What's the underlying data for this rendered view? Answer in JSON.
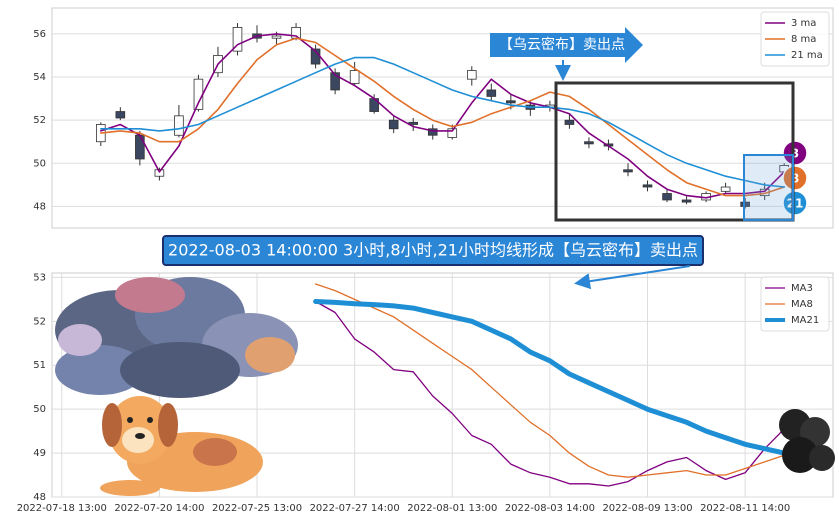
{
  "chart_data": [
    {
      "type": "candlestick",
      "annotation": "【乌云密布】卖出点",
      "open": [
        null,
        null,
        51.0,
        52.4,
        51.3,
        49.4,
        51.3,
        52.5,
        54.2,
        55.2,
        56.0,
        55.8,
        55.8,
        55.3,
        54.2,
        53.7,
        53.0,
        52.0,
        51.9,
        51.6,
        51.2,
        53.9,
        53.4,
        52.9,
        52.7,
        52.6,
        52.0,
        51.0,
        50.9,
        49.7,
        49.0,
        48.6,
        48.3,
        48.3,
        48.7,
        48.2,
        48.5,
        49.6,
        null,
        null
      ],
      "high": [
        null,
        null,
        51.9,
        52.6,
        51.5,
        49.8,
        52.7,
        54.1,
        55.4,
        56.5,
        56.4,
        56.1,
        56.5,
        55.5,
        54.4,
        54.7,
        53.2,
        52.2,
        52.1,
        51.8,
        51.8,
        54.5,
        53.7,
        53.2,
        52.9,
        52.9,
        52.3,
        51.2,
        51.1,
        50.0,
        49.2,
        48.8,
        48.5,
        48.7,
        49.1,
        48.4,
        49.1,
        50.0,
        null,
        null
      ],
      "low": [
        null,
        null,
        50.8,
        52.0,
        49.9,
        49.2,
        51.2,
        52.4,
        54.0,
        55.0,
        55.6,
        55.5,
        55.7,
        54.4,
        53.2,
        53.6,
        52.3,
        51.4,
        51.5,
        51.1,
        51.1,
        53.6,
        52.9,
        52.5,
        52.2,
        52.4,
        51.6,
        50.7,
        50.6,
        49.4,
        48.7,
        48.2,
        48.1,
        48.2,
        48.6,
        47.9,
        48.3,
        49.5,
        null,
        null
      ],
      "close": [
        null,
        null,
        51.8,
        52.1,
        50.2,
        49.7,
        52.2,
        53.9,
        55.0,
        56.3,
        55.8,
        55.9,
        56.3,
        54.6,
        53.4,
        54.3,
        52.4,
        51.6,
        51.8,
        51.3,
        51.6,
        54.3,
        53.1,
        52.8,
        52.5,
        52.7,
        51.8,
        50.9,
        50.8,
        49.6,
        48.9,
        48.3,
        48.2,
        48.6,
        48.9,
        48.0,
        48.8,
        49.9,
        null,
        null
      ],
      "up_color": "#ffffff",
      "down_color": "#3b4660",
      "series": [
        {
          "name": "3 ma",
          "color": "#800080",
          "width": 1.6,
          "values": [
            null,
            null,
            51.5,
            51.8,
            51.3,
            49.6,
            50.8,
            52.8,
            54.6,
            55.5,
            55.9,
            56.0,
            55.9,
            55.2,
            54.1,
            53.6,
            53.0,
            52.2,
            51.7,
            51.5,
            51.5,
            52.8,
            53.9,
            53.2,
            52.8,
            52.6,
            52.3,
            51.4,
            50.8,
            50.2,
            49.4,
            48.8,
            48.5,
            48.4,
            48.6,
            48.6,
            48.7,
            49.6,
            null,
            null
          ]
        },
        {
          "name": "8 ma",
          "color": "#e0702a",
          "width": 1.6,
          "values": [
            null,
            null,
            51.4,
            51.5,
            51.4,
            51.0,
            51.0,
            51.6,
            52.5,
            53.7,
            54.8,
            55.5,
            55.8,
            55.6,
            55.0,
            54.4,
            53.8,
            53.1,
            52.5,
            52.0,
            51.7,
            51.9,
            52.3,
            52.6,
            52.9,
            53.3,
            53.1,
            52.5,
            51.8,
            51.1,
            50.4,
            49.7,
            49.1,
            48.8,
            48.5,
            48.5,
            48.6,
            48.9,
            null,
            null
          ]
        },
        {
          "name": "21 ma",
          "color": "#1f8fd5",
          "width": 1.6,
          "values": [
            null,
            null,
            51.6,
            51.6,
            51.6,
            51.5,
            51.6,
            51.8,
            52.2,
            52.6,
            53.0,
            53.4,
            53.8,
            54.2,
            54.6,
            54.9,
            54.9,
            54.6,
            54.2,
            53.8,
            53.4,
            53.1,
            52.9,
            52.7,
            52.6,
            52.6,
            52.5,
            52.3,
            51.9,
            51.4,
            50.9,
            50.4,
            50.0,
            49.7,
            49.4,
            49.2,
            49.0,
            48.9,
            null,
            null
          ]
        }
      ],
      "markers": [
        {
          "label": "3",
          "color": "#800080"
        },
        {
          "label": "8",
          "color": "#e0702a"
        },
        {
          "label": "21",
          "color": "#1f8fd5"
        }
      ],
      "ylim": [
        47,
        57.2
      ],
      "yticks": [
        48,
        50,
        52,
        54,
        56
      ],
      "grid": true,
      "legend": "upper right"
    },
    {
      "type": "line",
      "title": "2022-08-03 14:00:00 3小时,8小时,21小时均线形成【乌云密布】卖出点",
      "categories": [
        "2022-07-18 13:00",
        null,
        null,
        null,
        null,
        "2022-07-20 14:00",
        null,
        null,
        null,
        null,
        "2022-07-25 13:00",
        null,
        null,
        null,
        null,
        "2022-07-27 14:00",
        null,
        null,
        null,
        null,
        "2022-08-01 13:00",
        null,
        null,
        null,
        null,
        "2022-08-03 14:00",
        null,
        null,
        null,
        null,
        "2022-08-09 13:00",
        null,
        null,
        null,
        null,
        "2022-08-11 14:00",
        null,
        null,
        null,
        null
      ],
      "series": [
        {
          "name": "MA3",
          "color": "#800080",
          "width": 1.3,
          "values": [
            null,
            null,
            null,
            null,
            null,
            null,
            null,
            null,
            null,
            null,
            null,
            null,
            null,
            52.45,
            52.2,
            51.6,
            51.3,
            50.9,
            50.85,
            50.3,
            49.9,
            49.4,
            49.2,
            48.75,
            48.55,
            48.45,
            48.3,
            48.3,
            48.25,
            48.35,
            48.6,
            48.8,
            48.9,
            48.6,
            48.4,
            48.55,
            49.1,
            49.55,
            null,
            null
          ]
        },
        {
          "name": "MA8",
          "color": "#e0702a",
          "width": 1.3,
          "values": [
            null,
            null,
            null,
            null,
            null,
            null,
            null,
            null,
            null,
            null,
            null,
            null,
            null,
            52.85,
            52.7,
            52.5,
            52.3,
            52.1,
            51.8,
            51.5,
            51.2,
            50.9,
            50.5,
            50.1,
            49.7,
            49.4,
            49.0,
            48.7,
            48.5,
            48.45,
            48.5,
            48.55,
            48.6,
            48.5,
            48.5,
            48.65,
            48.8,
            48.95,
            null,
            null
          ]
        },
        {
          "name": "MA21",
          "color": "#1f8fd5",
          "width": 5,
          "values": [
            null,
            null,
            null,
            null,
            null,
            null,
            null,
            null,
            null,
            null,
            null,
            null,
            null,
            52.45,
            52.43,
            52.4,
            52.38,
            52.35,
            52.3,
            52.2,
            52.1,
            52.0,
            51.8,
            51.6,
            51.3,
            51.1,
            50.8,
            50.6,
            50.4,
            50.2,
            50.0,
            49.85,
            49.7,
            49.5,
            49.35,
            49.2,
            49.1,
            49.0,
            null,
            null
          ]
        }
      ],
      "ylim": [
        48,
        53.1
      ],
      "yticks": [
        48,
        49,
        50,
        51,
        52,
        53
      ],
      "grid": true,
      "legend": "upper right"
    }
  ]
}
